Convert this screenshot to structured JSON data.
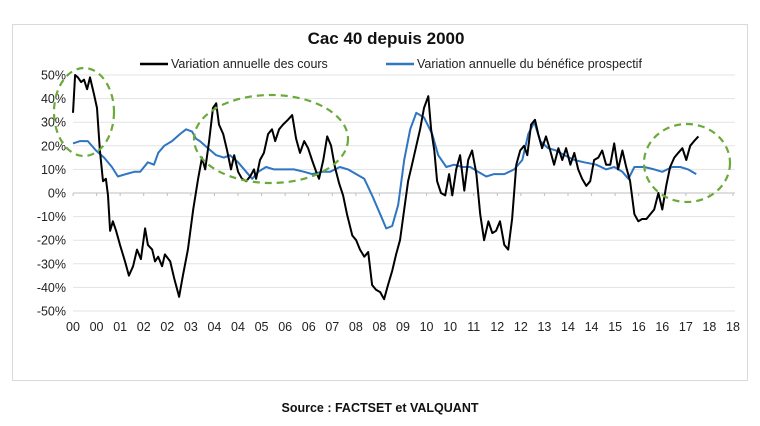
{
  "chart_data": {
    "type": "line",
    "title": "Cac 40 depuis 2000",
    "xlabel": "",
    "ylabel": "",
    "ylim": [
      -50,
      50
    ],
    "yticks": [
      "50%",
      "40%",
      "30%",
      "20%",
      "10%",
      "0%",
      "-10%",
      "-20%",
      "-30%",
      "-40%",
      "-50%"
    ],
    "ytick_values": [
      50,
      40,
      30,
      20,
      10,
      0,
      -10,
      -20,
      -30,
      -40,
      -50
    ],
    "xlim": [
      2000,
      2018.67
    ],
    "xtick_labels": [
      "00",
      "00",
      "01",
      "02",
      "02",
      "03",
      "04",
      "04",
      "05",
      "06",
      "06",
      "07",
      "08",
      "08",
      "09",
      "10",
      "10",
      "11",
      "12",
      "12",
      "13",
      "14",
      "14",
      "15",
      "16",
      "16",
      "17",
      "18",
      "18"
    ],
    "grid": "horizontal",
    "legend_position": "top",
    "series": [
      {
        "name": "Variation annuelle des cours",
        "color": "#000000",
        "points": [
          [
            2000.0,
            34
          ],
          [
            2000.06,
            50
          ],
          [
            2000.14,
            49
          ],
          [
            2000.23,
            47
          ],
          [
            2000.31,
            48
          ],
          [
            2000.4,
            44
          ],
          [
            2000.48,
            49
          ],
          [
            2000.59,
            42
          ],
          [
            2000.68,
            36
          ],
          [
            2000.76,
            18
          ],
          [
            2000.85,
            5
          ],
          [
            2000.93,
            6
          ],
          [
            2000.99,
            -1
          ],
          [
            2001.05,
            -16
          ],
          [
            2001.13,
            -12
          ],
          [
            2001.22,
            -16
          ],
          [
            2001.33,
            -22
          ],
          [
            2001.47,
            -29
          ],
          [
            2001.58,
            -35
          ],
          [
            2001.7,
            -31
          ],
          [
            2001.81,
            -24
          ],
          [
            2001.92,
            -28
          ],
          [
            2002.04,
            -15
          ],
          [
            2002.12,
            -22
          ],
          [
            2002.24,
            -24
          ],
          [
            2002.32,
            -29
          ],
          [
            2002.41,
            -27
          ],
          [
            2002.52,
            -31
          ],
          [
            2002.6,
            -26
          ],
          [
            2002.75,
            -29
          ],
          [
            2002.86,
            -36
          ],
          [
            2003.0,
            -44
          ],
          [
            2003.11,
            -35
          ],
          [
            2003.25,
            -24
          ],
          [
            2003.4,
            -7
          ],
          [
            2003.54,
            6
          ],
          [
            2003.65,
            15
          ],
          [
            2003.74,
            10
          ],
          [
            2003.85,
            22
          ],
          [
            2003.96,
            36
          ],
          [
            2004.05,
            38
          ],
          [
            2004.13,
            29
          ],
          [
            2004.25,
            25
          ],
          [
            2004.36,
            18
          ],
          [
            2004.47,
            10
          ],
          [
            2004.56,
            16
          ],
          [
            2004.67,
            9
          ],
          [
            2004.78,
            6
          ],
          [
            2004.9,
            5
          ],
          [
            2005.01,
            7
          ],
          [
            2005.12,
            10
          ],
          [
            2005.18,
            6
          ],
          [
            2005.29,
            14
          ],
          [
            2005.4,
            17
          ],
          [
            2005.52,
            25
          ],
          [
            2005.63,
            27
          ],
          [
            2005.72,
            22
          ],
          [
            2005.83,
            27
          ],
          [
            2005.94,
            29
          ],
          [
            2006.08,
            31
          ],
          [
            2006.2,
            33
          ],
          [
            2006.31,
            23
          ],
          [
            2006.42,
            17
          ],
          [
            2006.54,
            22
          ],
          [
            2006.65,
            19
          ],
          [
            2006.76,
            14
          ],
          [
            2006.88,
            9
          ],
          [
            2006.96,
            6
          ],
          [
            2007.08,
            14
          ],
          [
            2007.19,
            24
          ],
          [
            2007.3,
            20
          ],
          [
            2007.41,
            11
          ],
          [
            2007.53,
            4
          ],
          [
            2007.64,
            -1
          ],
          [
            2007.75,
            -9
          ],
          [
            2007.9,
            -18
          ],
          [
            2008.01,
            -20
          ],
          [
            2008.12,
            -24
          ],
          [
            2008.24,
            -27
          ],
          [
            2008.35,
            -25
          ],
          [
            2008.46,
            -39
          ],
          [
            2008.57,
            -41
          ],
          [
            2008.69,
            -42
          ],
          [
            2008.8,
            -45
          ],
          [
            2008.91,
            -39
          ],
          [
            2009.03,
            -33
          ],
          [
            2009.14,
            -26
          ],
          [
            2009.25,
            -20
          ],
          [
            2009.37,
            -7
          ],
          [
            2009.48,
            5
          ],
          [
            2009.59,
            12
          ],
          [
            2009.71,
            20
          ],
          [
            2009.82,
            27
          ],
          [
            2009.93,
            36
          ],
          [
            2010.05,
            41
          ],
          [
            2010.13,
            27
          ],
          [
            2010.22,
            18
          ],
          [
            2010.3,
            5
          ],
          [
            2010.41,
            0
          ],
          [
            2010.53,
            -1
          ],
          [
            2010.64,
            8
          ],
          [
            2010.73,
            -1
          ],
          [
            2010.84,
            10
          ],
          [
            2010.95,
            16
          ],
          [
            2011.07,
            1
          ],
          [
            2011.18,
            14
          ],
          [
            2011.29,
            18
          ],
          [
            2011.41,
            8
          ],
          [
            2011.52,
            -9
          ],
          [
            2011.63,
            -20
          ],
          [
            2011.75,
            -12
          ],
          [
            2011.86,
            -17
          ],
          [
            2011.97,
            -16
          ],
          [
            2012.08,
            -12
          ],
          [
            2012.2,
            -22
          ],
          [
            2012.31,
            -24
          ],
          [
            2012.42,
            -11
          ],
          [
            2012.54,
            12
          ],
          [
            2012.65,
            18
          ],
          [
            2012.76,
            20
          ],
          [
            2012.85,
            16
          ],
          [
            2012.96,
            29
          ],
          [
            2013.07,
            31
          ],
          [
            2013.16,
            25
          ],
          [
            2013.27,
            19
          ],
          [
            2013.38,
            24
          ],
          [
            2013.5,
            18
          ],
          [
            2013.61,
            12
          ],
          [
            2013.73,
            19
          ],
          [
            2013.84,
            14
          ],
          [
            2013.95,
            19
          ],
          [
            2014.07,
            12
          ],
          [
            2014.18,
            17
          ],
          [
            2014.29,
            10
          ],
          [
            2014.4,
            6
          ],
          [
            2014.52,
            3
          ],
          [
            2014.63,
            5
          ],
          [
            2014.74,
            14
          ],
          [
            2014.86,
            15
          ],
          [
            2014.97,
            18
          ],
          [
            2015.08,
            12
          ],
          [
            2015.2,
            12
          ],
          [
            2015.31,
            21
          ],
          [
            2015.42,
            10
          ],
          [
            2015.54,
            18
          ],
          [
            2015.65,
            11
          ],
          [
            2015.76,
            5
          ],
          [
            2015.88,
            -9
          ],
          [
            2015.99,
            -12
          ],
          [
            2016.1,
            -11
          ],
          [
            2016.22,
            -11
          ],
          [
            2016.33,
            -9
          ],
          [
            2016.44,
            -7
          ],
          [
            2016.56,
            0
          ],
          [
            2016.67,
            -7
          ],
          [
            2016.78,
            3
          ],
          [
            2016.89,
            11
          ],
          [
            2017.01,
            15
          ],
          [
            2017.12,
            17
          ],
          [
            2017.24,
            19
          ],
          [
            2017.35,
            14
          ],
          [
            2017.46,
            20
          ],
          [
            2017.57,
            22
          ],
          [
            2017.69,
            24
          ]
        ]
      },
      {
        "name": "Variation annuelle du bénéfice prospectif",
        "color": "#2e75c2",
        "points": [
          [
            2000.0,
            21
          ],
          [
            2000.2,
            22
          ],
          [
            2000.42,
            22
          ],
          [
            2000.65,
            18
          ],
          [
            2000.88,
            15
          ],
          [
            2001.1,
            11
          ],
          [
            2001.27,
            7
          ],
          [
            2001.5,
            8
          ],
          [
            2001.73,
            9
          ],
          [
            2001.9,
            9
          ],
          [
            2002.12,
            13
          ],
          [
            2002.29,
            12
          ],
          [
            2002.41,
            17
          ],
          [
            2002.58,
            20
          ],
          [
            2002.8,
            22
          ],
          [
            2003.03,
            25
          ],
          [
            2003.2,
            27
          ],
          [
            2003.37,
            26
          ],
          [
            2003.48,
            23
          ],
          [
            2003.59,
            22
          ],
          [
            2003.82,
            19
          ],
          [
            2004.05,
            16
          ],
          [
            2004.27,
            15
          ],
          [
            2004.44,
            16
          ],
          [
            2004.67,
            13
          ],
          [
            2004.9,
            9
          ],
          [
            2005.07,
            6
          ],
          [
            2005.24,
            9
          ],
          [
            2005.46,
            11
          ],
          [
            2005.69,
            10
          ],
          [
            2005.97,
            10
          ],
          [
            2006.25,
            10
          ],
          [
            2006.54,
            9
          ],
          [
            2006.76,
            8
          ],
          [
            2007.04,
            9
          ],
          [
            2007.27,
            9
          ],
          [
            2007.55,
            11
          ],
          [
            2007.78,
            10
          ],
          [
            2008.01,
            8
          ],
          [
            2008.24,
            6
          ],
          [
            2008.46,
            -1
          ],
          [
            2008.69,
            -9
          ],
          [
            2008.86,
            -15
          ],
          [
            2009.03,
            -14
          ],
          [
            2009.2,
            -5
          ],
          [
            2009.37,
            14
          ],
          [
            2009.54,
            27
          ],
          [
            2009.71,
            34
          ],
          [
            2009.93,
            32
          ],
          [
            2010.16,
            25
          ],
          [
            2010.33,
            16
          ],
          [
            2010.56,
            11
          ],
          [
            2010.78,
            12
          ],
          [
            2011.01,
            11
          ],
          [
            2011.24,
            11
          ],
          [
            2011.46,
            9
          ],
          [
            2011.69,
            7
          ],
          [
            2011.91,
            8
          ],
          [
            2012.2,
            8
          ],
          [
            2012.48,
            10
          ],
          [
            2012.71,
            14
          ],
          [
            2012.88,
            25
          ],
          [
            2013.05,
            30
          ],
          [
            2013.22,
            22
          ],
          [
            2013.44,
            19
          ],
          [
            2013.67,
            18
          ],
          [
            2013.9,
            16
          ],
          [
            2014.18,
            14
          ],
          [
            2014.46,
            13
          ],
          [
            2014.8,
            12
          ],
          [
            2015.08,
            10
          ],
          [
            2015.31,
            11
          ],
          [
            2015.54,
            9
          ],
          [
            2015.71,
            6
          ],
          [
            2015.88,
            11
          ],
          [
            2016.16,
            11
          ],
          [
            2016.44,
            10
          ],
          [
            2016.67,
            9
          ],
          [
            2016.95,
            11
          ],
          [
            2017.18,
            11
          ],
          [
            2017.4,
            10
          ],
          [
            2017.63,
            8
          ]
        ]
      }
    ],
    "annotations": [
      {
        "type": "dashed-ellipse",
        "color": "#6aaa3a"
      },
      {
        "type": "dashed-ellipse",
        "color": "#6aaa3a"
      },
      {
        "type": "dashed-ellipse",
        "color": "#6aaa3a"
      }
    ]
  },
  "source": "Source : FACTSET et VALQUANT"
}
